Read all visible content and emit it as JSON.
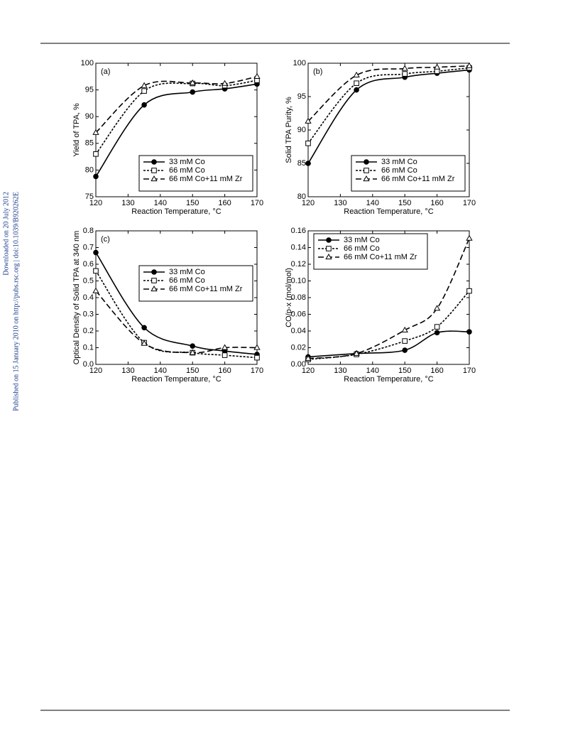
{
  "sidebar": {
    "downloaded": "Downloaded on 20 July 2012",
    "published": "Published on 15 January 2010 on http://pubs.rsc.org | doi:10.1039/B920262E"
  },
  "chart_data": [
    {
      "type": "line",
      "panel": "(a)",
      "x_label": "Reaction Temperature, °C",
      "y_label": "Yield of TPA, %",
      "x": [
        120,
        135,
        150,
        160,
        170
      ],
      "xlim": [
        120,
        170
      ],
      "xticks": [
        120,
        130,
        140,
        150,
        160,
        170
      ],
      "ylim": [
        75,
        100
      ],
      "yticks": [
        75,
        80,
        85,
        90,
        95,
        100
      ],
      "legend": "lower right",
      "series": [
        {
          "name": "33 mM Co",
          "color": "#000000",
          "marker": "circle",
          "line_style": "solid",
          "values": [
            78.8,
            92.2,
            94.6,
            95.2,
            96.1
          ]
        },
        {
          "name": "66 mM Co",
          "color": "#000000",
          "marker": "square",
          "line_style": "dotted",
          "values": [
            83,
            94.8,
            96.2,
            95.8,
            96.8
          ]
        },
        {
          "name": "66 mM Co+11 mM Zr",
          "color": "#000000",
          "marker": "triangle",
          "line_style": "dashed",
          "values": [
            87,
            95.8,
            96.3,
            96.2,
            97.5
          ]
        }
      ]
    },
    {
      "type": "line",
      "panel": "(b)",
      "x_label": "Reaction Temperature, °C",
      "y_label": "Solid TPA Purity, %",
      "x": [
        120,
        135,
        150,
        160,
        170
      ],
      "xlim": [
        120,
        170
      ],
      "xticks": [
        120,
        130,
        140,
        150,
        160,
        170
      ],
      "ylim": [
        80,
        100
      ],
      "yticks": [
        80,
        85,
        90,
        95,
        100
      ],
      "legend": "lower right",
      "series": [
        {
          "name": "33 mM Co",
          "color": "#000000",
          "marker": "circle",
          "line_style": "solid",
          "values": [
            85,
            96,
            97.9,
            98.5,
            99
          ]
        },
        {
          "name": "66 mM Co",
          "color": "#000000",
          "marker": "square",
          "line_style": "dotted",
          "values": [
            88,
            97,
            98.4,
            98.8,
            99.3
          ]
        },
        {
          "name": "66 mM Co+11 mM Zr",
          "color": "#000000",
          "marker": "triangle",
          "line_style": "dashed",
          "values": [
            91.3,
            98.2,
            99.2,
            99.4,
            99.6
          ]
        }
      ]
    },
    {
      "type": "line",
      "panel": "(c)",
      "x_label": "Reaction Temperature, °C",
      "y_label": "Optical Density of Solid TPA at 340 nm",
      "x": [
        120,
        135,
        150,
        160,
        170
      ],
      "xlim": [
        120,
        170
      ],
      "xticks": [
        120,
        130,
        140,
        150,
        160,
        170
      ],
      "ylim": [
        0,
        0.8
      ],
      "yticks": [
        {
          "value": 0,
          "label": "0.0"
        },
        0.1,
        0.2,
        0.3,
        0.4,
        0.5,
        0.6,
        0.7,
        0.8
      ],
      "legend": "center right",
      "series": [
        {
          "name": "33 mM Co",
          "color": "#000000",
          "marker": "circle",
          "line_style": "solid",
          "values": [
            0.67,
            0.22,
            0.11,
            0.08,
            0.06
          ]
        },
        {
          "name": "66 mM Co",
          "color": "#000000",
          "marker": "square",
          "line_style": "dotted",
          "values": [
            0.56,
            0.13,
            0.07,
            0.055,
            0.04
          ]
        },
        {
          "name": "66 mM Co+11 mM Zr",
          "color": "#000000",
          "marker": "triangle",
          "line_style": "dashed",
          "values": [
            0.44,
            0.125,
            0.07,
            0.1,
            0.1
          ]
        }
      ]
    },
    {
      "type": "line",
      "panel": "(d)",
      "x_label": "Reaction Temperature, °C",
      "y_label": "CO/p-x (mol/mol)",
      "x": [
        120,
        135,
        150,
        160,
        170
      ],
      "xlim": [
        120,
        170
      ],
      "xticks": [
        120,
        130,
        140,
        150,
        160,
        170
      ],
      "ylim": [
        0,
        0.16
      ],
      "yticks": [
        {
          "value": 0,
          "label": "0.00"
        },
        0.02,
        0.04,
        0.06,
        0.08,
        {
          "value": 0.1,
          "label": "0.10"
        },
        0.12,
        0.14,
        0.16
      ],
      "legend": "upper left",
      "series": [
        {
          "name": "33 mM Co",
          "color": "#000000",
          "marker": "circle",
          "line_style": "solid",
          "values": [
            0.009,
            0.013,
            0.017,
            0.038,
            0.039
          ]
        },
        {
          "name": "66 mM Co",
          "color": "#000000",
          "marker": "square",
          "line_style": "dotted",
          "values": [
            0.006,
            0.012,
            0.028,
            0.045,
            0.088
          ]
        },
        {
          "name": "66 mM Co+11 mM Zr",
          "color": "#000000",
          "marker": "triangle",
          "line_style": "dashed",
          "values": [
            0.007,
            0.013,
            0.041,
            0.067,
            0.151
          ]
        }
      ]
    }
  ]
}
